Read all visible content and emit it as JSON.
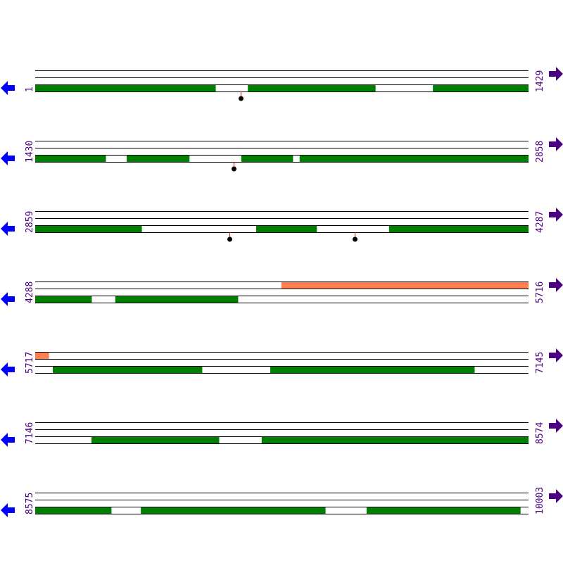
{
  "map": {
    "bp_per_row": 1429,
    "colors": {
      "feature_green": "#008000",
      "feature_orange": "#ff7f50",
      "line": "#000000",
      "marker_stem": "#ff0000",
      "marker_dot": "#000000",
      "left_arrow": "#0000ff",
      "right_arrow": "#4b0082",
      "label": "#4b0082"
    },
    "icons": {
      "left": "arrow-left-icon",
      "right": "arrow-right-icon"
    },
    "rows": [
      {
        "start": "1",
        "end": "1429",
        "top_features": [],
        "bottom_features": [
          [
            1,
            523
          ],
          [
            617,
            986
          ],
          [
            1153,
            1429
          ]
        ],
        "markers": [
          596
        ]
      },
      {
        "start": "1430",
        "end": "2858",
        "top_features": [],
        "bottom_features": [
          [
            1430,
            1634
          ],
          [
            1695,
            1876
          ],
          [
            2027,
            2176
          ],
          [
            2196,
            2858
          ]
        ],
        "markers": [
          2005
        ]
      },
      {
        "start": "2859",
        "end": "4287",
        "top_features": [],
        "bottom_features": [
          [
            2859,
            3167
          ],
          [
            3499,
            3674
          ],
          [
            3884,
            4287
          ]
        ],
        "markers": [
          3422,
          3784
        ]
      },
      {
        "start": "4288",
        "end": "5716",
        "top_features": [
          [
            5001,
            5716
          ]
        ],
        "bottom_features": [
          [
            4288,
            4451
          ],
          [
            4520,
            4875
          ]
        ],
        "markers": []
      },
      {
        "start": "5717",
        "end": "7145",
        "top_features": [
          [
            5717,
            5756
          ]
        ],
        "bottom_features": [
          [
            5768,
            6200
          ],
          [
            6398,
            6989
          ]
        ],
        "markers": []
      },
      {
        "start": "7146",
        "end": "8574",
        "top_features": [],
        "bottom_features": [
          [
            7309,
            7678
          ],
          [
            7802,
            8574
          ]
        ],
        "markers": []
      },
      {
        "start": "8575",
        "end": "10003",
        "top_features": [],
        "bottom_features": [
          [
            8575,
            8795
          ],
          [
            8881,
            9415
          ],
          [
            9535,
            9980
          ]
        ],
        "markers": []
      }
    ]
  }
}
